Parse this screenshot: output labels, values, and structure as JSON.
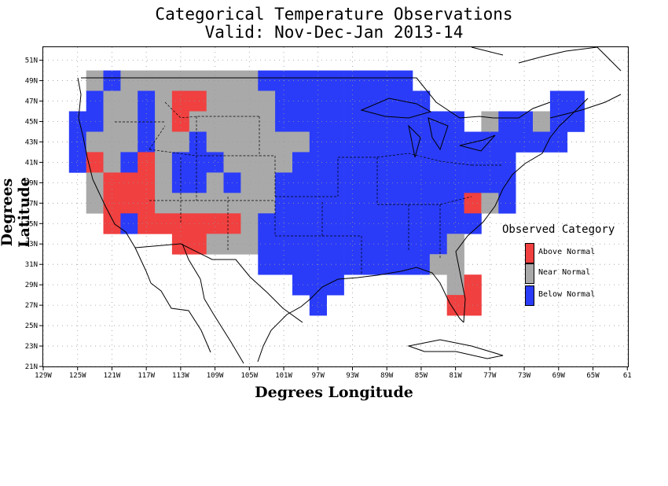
{
  "title_line1": "Categorical Temperature Observations",
  "title_line2": "Valid: Nov-Dec-Jan 2013-14",
  "xlabel": "Degrees Longitude",
  "ylabel": "Degrees Latitude",
  "x_ticks": [
    "129W",
    "125W",
    "121W",
    "117W",
    "113W",
    "109W",
    "105W",
    "101W",
    "97W",
    "93W",
    "89W",
    "85W",
    "81W",
    "77W",
    "73W",
    "69W",
    "65W",
    "61"
  ],
  "y_ticks": [
    "21N",
    "23N",
    "25N",
    "27N",
    "29N",
    "31N",
    "33N",
    "35N",
    "37N",
    "39N",
    "41N",
    "43N",
    "45N",
    "47N",
    "49N",
    "51N"
  ],
  "legend": {
    "title": "Observed Category",
    "items": [
      {
        "label": "Above Normal",
        "color": "#f04040"
      },
      {
        "label": "Near Normal",
        "color": "#a9a9a9"
      },
      {
        "label": "Below Normal",
        "color": "#2a3cf8"
      }
    ]
  },
  "colors": {
    "A": "#f04040",
    "N": "#a9a9a9",
    "B": "#2a3cf8"
  },
  "map_data": {
    "lon_range": [
      -129,
      -61
    ],
    "lat_range": [
      21,
      52
    ],
    "cell_size_deg": 2,
    "categories": {
      "A": "Above Normal",
      "N": "Near Normal",
      "B": "Below Normal"
    },
    "cells": [
      {
        "lat": 48,
        "lon": -124,
        "cat": "N"
      },
      {
        "lat": 48,
        "lon": -122,
        "cat": "B"
      },
      {
        "lat": 48,
        "lon": -120,
        "cat": "N"
      },
      {
        "lat": 48,
        "lon": -118,
        "cat": "N"
      },
      {
        "lat": 48,
        "lon": -116,
        "cat": "N"
      },
      {
        "lat": 48,
        "lon": -114,
        "cat": "N"
      },
      {
        "lat": 48,
        "lon": -112,
        "cat": "N"
      },
      {
        "lat": 48,
        "lon": -110,
        "cat": "N"
      },
      {
        "lat": 48,
        "lon": -108,
        "cat": "N"
      },
      {
        "lat": 48,
        "lon": -106,
        "cat": "N"
      },
      {
        "lat": 48,
        "lon": -104,
        "cat": "B"
      },
      {
        "lat": 48,
        "lon": -102,
        "cat": "B"
      },
      {
        "lat": 48,
        "lon": -100,
        "cat": "B"
      },
      {
        "lat": 48,
        "lon": -98,
        "cat": "B"
      },
      {
        "lat": 48,
        "lon": -96,
        "cat": "B"
      },
      {
        "lat": 48,
        "lon": -94,
        "cat": "B"
      },
      {
        "lat": 48,
        "lon": -92,
        "cat": "B"
      },
      {
        "lat": 48,
        "lon": -90,
        "cat": "B"
      },
      {
        "lat": 48,
        "lon": -88,
        "cat": "B"
      },
      {
        "lat": 46,
        "lon": -124,
        "cat": "B"
      },
      {
        "lat": 46,
        "lon": -122,
        "cat": "N"
      },
      {
        "lat": 46,
        "lon": -120,
        "cat": "N"
      },
      {
        "lat": 46,
        "lon": -118,
        "cat": "B"
      },
      {
        "lat": 46,
        "lon": -116,
        "cat": "N"
      },
      {
        "lat": 46,
        "lon": -114,
        "cat": "A"
      },
      {
        "lat": 46,
        "lon": -112,
        "cat": "A"
      },
      {
        "lat": 46,
        "lon": -110,
        "cat": "N"
      },
      {
        "lat": 46,
        "lon": -108,
        "cat": "N"
      },
      {
        "lat": 46,
        "lon": -106,
        "cat": "N"
      },
      {
        "lat": 46,
        "lon": -104,
        "cat": "N"
      },
      {
        "lat": 46,
        "lon": -102,
        "cat": "B"
      },
      {
        "lat": 46,
        "lon": -100,
        "cat": "B"
      },
      {
        "lat": 46,
        "lon": -98,
        "cat": "B"
      },
      {
        "lat": 46,
        "lon": -96,
        "cat": "B"
      },
      {
        "lat": 46,
        "lon": -94,
        "cat": "B"
      },
      {
        "lat": 46,
        "lon": -92,
        "cat": "B"
      },
      {
        "lat": 46,
        "lon": -90,
        "cat": "B"
      },
      {
        "lat": 46,
        "lon": -88,
        "cat": "B"
      },
      {
        "lat": 46,
        "lon": -86,
        "cat": "B"
      },
      {
        "lat": 46,
        "lon": -70,
        "cat": "B"
      },
      {
        "lat": 46,
        "lon": -68,
        "cat": "B"
      },
      {
        "lat": 44,
        "lon": -126,
        "cat": "B"
      },
      {
        "lat": 44,
        "lon": -124,
        "cat": "B"
      },
      {
        "lat": 44,
        "lon": -122,
        "cat": "N"
      },
      {
        "lat": 44,
        "lon": -120,
        "cat": "N"
      },
      {
        "lat": 44,
        "lon": -118,
        "cat": "B"
      },
      {
        "lat": 44,
        "lon": -116,
        "cat": "N"
      },
      {
        "lat": 44,
        "lon": -114,
        "cat": "A"
      },
      {
        "lat": 44,
        "lon": -112,
        "cat": "N"
      },
      {
        "lat": 44,
        "lon": -110,
        "cat": "N"
      },
      {
        "lat": 44,
        "lon": -108,
        "cat": "N"
      },
      {
        "lat": 44,
        "lon": -106,
        "cat": "N"
      },
      {
        "lat": 44,
        "lon": -104,
        "cat": "N"
      },
      {
        "lat": 44,
        "lon": -102,
        "cat": "B"
      },
      {
        "lat": 44,
        "lon": -100,
        "cat": "B"
      },
      {
        "lat": 44,
        "lon": -98,
        "cat": "B"
      },
      {
        "lat": 44,
        "lon": -96,
        "cat": "B"
      },
      {
        "lat": 44,
        "lon": -94,
        "cat": "B"
      },
      {
        "lat": 44,
        "lon": -92,
        "cat": "B"
      },
      {
        "lat": 44,
        "lon": -90,
        "cat": "B"
      },
      {
        "lat": 44,
        "lon": -88,
        "cat": "B"
      },
      {
        "lat": 44,
        "lon": -86,
        "cat": "B"
      },
      {
        "lat": 44,
        "lon": -84,
        "cat": "B"
      },
      {
        "lat": 44,
        "lon": -82,
        "cat": "B"
      },
      {
        "lat": 44,
        "lon": -78,
        "cat": "N"
      },
      {
        "lat": 44,
        "lon": -76,
        "cat": "B"
      },
      {
        "lat": 44,
        "lon": -74,
        "cat": "B"
      },
      {
        "lat": 44,
        "lon": -72,
        "cat": "N"
      },
      {
        "lat": 44,
        "lon": -70,
        "cat": "B"
      },
      {
        "lat": 44,
        "lon": -68,
        "cat": "B"
      },
      {
        "lat": 42,
        "lon": -126,
        "cat": "B"
      },
      {
        "lat": 42,
        "lon": -124,
        "cat": "N"
      },
      {
        "lat": 42,
        "lon": -122,
        "cat": "N"
      },
      {
        "lat": 42,
        "lon": -120,
        "cat": "N"
      },
      {
        "lat": 42,
        "lon": -118,
        "cat": "B"
      },
      {
        "lat": 42,
        "lon": -116,
        "cat": "N"
      },
      {
        "lat": 42,
        "lon": -114,
        "cat": "N"
      },
      {
        "lat": 42,
        "lon": -112,
        "cat": "B"
      },
      {
        "lat": 42,
        "lon": -110,
        "cat": "N"
      },
      {
        "lat": 42,
        "lon": -108,
        "cat": "N"
      },
      {
        "lat": 42,
        "lon": -106,
        "cat": "N"
      },
      {
        "lat": 42,
        "lon": -104,
        "cat": "N"
      },
      {
        "lat": 42,
        "lon": -102,
        "cat": "N"
      },
      {
        "lat": 42,
        "lon": -100,
        "cat": "N"
      },
      {
        "lat": 42,
        "lon": -98,
        "cat": "B"
      },
      {
        "lat": 42,
        "lon": -96,
        "cat": "B"
      },
      {
        "lat": 42,
        "lon": -94,
        "cat": "B"
      },
      {
        "lat": 42,
        "lon": -92,
        "cat": "B"
      },
      {
        "lat": 42,
        "lon": -90,
        "cat": "B"
      },
      {
        "lat": 42,
        "lon": -88,
        "cat": "B"
      },
      {
        "lat": 42,
        "lon": -86,
        "cat": "B"
      },
      {
        "lat": 42,
        "lon": -84,
        "cat": "B"
      },
      {
        "lat": 42,
        "lon": -82,
        "cat": "B"
      },
      {
        "lat": 42,
        "lon": -80,
        "cat": "B"
      },
      {
        "lat": 42,
        "lon": -78,
        "cat": "B"
      },
      {
        "lat": 42,
        "lon": -76,
        "cat": "B"
      },
      {
        "lat": 42,
        "lon": -74,
        "cat": "B"
      },
      {
        "lat": 42,
        "lon": -72,
        "cat": "B"
      },
      {
        "lat": 42,
        "lon": -70,
        "cat": "B"
      },
      {
        "lat": 40,
        "lon": -126,
        "cat": "B"
      },
      {
        "lat": 40,
        "lon": -124,
        "cat": "A"
      },
      {
        "lat": 40,
        "lon": -122,
        "cat": "N"
      },
      {
        "lat": 40,
        "lon": -120,
        "cat": "B"
      },
      {
        "lat": 40,
        "lon": -118,
        "cat": "A"
      },
      {
        "lat": 40,
        "lon": -116,
        "cat": "N"
      },
      {
        "lat": 40,
        "lon": -114,
        "cat": "B"
      },
      {
        "lat": 40,
        "lon": -112,
        "cat": "B"
      },
      {
        "lat": 40,
        "lon": -110,
        "cat": "B"
      },
      {
        "lat": 40,
        "lon": -108,
        "cat": "N"
      },
      {
        "lat": 40,
        "lon": -106,
        "cat": "N"
      },
      {
        "lat": 40,
        "lon": -104,
        "cat": "N"
      },
      {
        "lat": 40,
        "lon": -102,
        "cat": "N"
      },
      {
        "lat": 40,
        "lon": -100,
        "cat": "B"
      },
      {
        "lat": 40,
        "lon": -98,
        "cat": "B"
      },
      {
        "lat": 40,
        "lon": -96,
        "cat": "B"
      },
      {
        "lat": 40,
        "lon": -94,
        "cat": "B"
      },
      {
        "lat": 40,
        "lon": -92,
        "cat": "B"
      },
      {
        "lat": 40,
        "lon": -90,
        "cat": "B"
      },
      {
        "lat": 40,
        "lon": -88,
        "cat": "B"
      },
      {
        "lat": 40,
        "lon": -86,
        "cat": "B"
      },
      {
        "lat": 40,
        "lon": -84,
        "cat": "B"
      },
      {
        "lat": 40,
        "lon": -82,
        "cat": "B"
      },
      {
        "lat": 40,
        "lon": -80,
        "cat": "B"
      },
      {
        "lat": 40,
        "lon": -78,
        "cat": "B"
      },
      {
        "lat": 40,
        "lon": -76,
        "cat": "B"
      },
      {
        "lat": 38,
        "lon": -124,
        "cat": "N"
      },
      {
        "lat": 38,
        "lon": -122,
        "cat": "A"
      },
      {
        "lat": 38,
        "lon": -120,
        "cat": "A"
      },
      {
        "lat": 38,
        "lon": -118,
        "cat": "A"
      },
      {
        "lat": 38,
        "lon": -116,
        "cat": "N"
      },
      {
        "lat": 38,
        "lon": -114,
        "cat": "B"
      },
      {
        "lat": 38,
        "lon": -112,
        "cat": "B"
      },
      {
        "lat": 38,
        "lon": -110,
        "cat": "N"
      },
      {
        "lat": 38,
        "lon": -108,
        "cat": "B"
      },
      {
        "lat": 38,
        "lon": -106,
        "cat": "N"
      },
      {
        "lat": 38,
        "lon": -104,
        "cat": "N"
      },
      {
        "lat": 38,
        "lon": -102,
        "cat": "B"
      },
      {
        "lat": 38,
        "lon": -100,
        "cat": "B"
      },
      {
        "lat": 38,
        "lon": -98,
        "cat": "B"
      },
      {
        "lat": 38,
        "lon": -96,
        "cat": "B"
      },
      {
        "lat": 38,
        "lon": -94,
        "cat": "B"
      },
      {
        "lat": 38,
        "lon": -92,
        "cat": "B"
      },
      {
        "lat": 38,
        "lon": -90,
        "cat": "B"
      },
      {
        "lat": 38,
        "lon": -88,
        "cat": "B"
      },
      {
        "lat": 38,
        "lon": -86,
        "cat": "B"
      },
      {
        "lat": 38,
        "lon": -84,
        "cat": "B"
      },
      {
        "lat": 38,
        "lon": -82,
        "cat": "B"
      },
      {
        "lat": 38,
        "lon": -80,
        "cat": "B"
      },
      {
        "lat": 38,
        "lon": -78,
        "cat": "B"
      },
      {
        "lat": 38,
        "lon": -76,
        "cat": "B"
      },
      {
        "lat": 36,
        "lon": -124,
        "cat": "N"
      },
      {
        "lat": 36,
        "lon": -122,
        "cat": "A"
      },
      {
        "lat": 36,
        "lon": -120,
        "cat": "A"
      },
      {
        "lat": 36,
        "lon": -118,
        "cat": "A"
      },
      {
        "lat": 36,
        "lon": -116,
        "cat": "N"
      },
      {
        "lat": 36,
        "lon": -114,
        "cat": "N"
      },
      {
        "lat": 36,
        "lon": -112,
        "cat": "N"
      },
      {
        "lat": 36,
        "lon": -110,
        "cat": "N"
      },
      {
        "lat": 36,
        "lon": -108,
        "cat": "N"
      },
      {
        "lat": 36,
        "lon": -106,
        "cat": "N"
      },
      {
        "lat": 36,
        "lon": -104,
        "cat": "N"
      },
      {
        "lat": 36,
        "lon": -102,
        "cat": "B"
      },
      {
        "lat": 36,
        "lon": -100,
        "cat": "B"
      },
      {
        "lat": 36,
        "lon": -98,
        "cat": "B"
      },
      {
        "lat": 36,
        "lon": -96,
        "cat": "B"
      },
      {
        "lat": 36,
        "lon": -94,
        "cat": "B"
      },
      {
        "lat": 36,
        "lon": -92,
        "cat": "B"
      },
      {
        "lat": 36,
        "lon": -90,
        "cat": "B"
      },
      {
        "lat": 36,
        "lon": -88,
        "cat": "B"
      },
      {
        "lat": 36,
        "lon": -86,
        "cat": "B"
      },
      {
        "lat": 36,
        "lon": -84,
        "cat": "B"
      },
      {
        "lat": 36,
        "lon": -82,
        "cat": "B"
      },
      {
        "lat": 36,
        "lon": -80,
        "cat": "A"
      },
      {
        "lat": 36,
        "lon": -78,
        "cat": "N"
      },
      {
        "lat": 36,
        "lon": -76,
        "cat": "B"
      },
      {
        "lat": 34,
        "lon": -122,
        "cat": "A"
      },
      {
        "lat": 34,
        "lon": -120,
        "cat": "B"
      },
      {
        "lat": 34,
        "lon": -118,
        "cat": "A"
      },
      {
        "lat": 34,
        "lon": -116,
        "cat": "A"
      },
      {
        "lat": 34,
        "lon": -114,
        "cat": "A"
      },
      {
        "lat": 34,
        "lon": -112,
        "cat": "A"
      },
      {
        "lat": 34,
        "lon": -110,
        "cat": "A"
      },
      {
        "lat": 34,
        "lon": -108,
        "cat": "A"
      },
      {
        "lat": 34,
        "lon": -106,
        "cat": "N"
      },
      {
        "lat": 34,
        "lon": -104,
        "cat": "B"
      },
      {
        "lat": 34,
        "lon": -102,
        "cat": "B"
      },
      {
        "lat": 34,
        "lon": -100,
        "cat": "B"
      },
      {
        "lat": 34,
        "lon": -98,
        "cat": "B"
      },
      {
        "lat": 34,
        "lon": -96,
        "cat": "B"
      },
      {
        "lat": 34,
        "lon": -94,
        "cat": "B"
      },
      {
        "lat": 34,
        "lon": -92,
        "cat": "B"
      },
      {
        "lat": 34,
        "lon": -90,
        "cat": "B"
      },
      {
        "lat": 34,
        "lon": -88,
        "cat": "B"
      },
      {
        "lat": 34,
        "lon": -86,
        "cat": "B"
      },
      {
        "lat": 34,
        "lon": -84,
        "cat": "B"
      },
      {
        "lat": 34,
        "lon": -82,
        "cat": "B"
      },
      {
        "lat": 34,
        "lon": -80,
        "cat": "B"
      },
      {
        "lat": 32,
        "lon": -114,
        "cat": "A"
      },
      {
        "lat": 32,
        "lon": -112,
        "cat": "A"
      },
      {
        "lat": 32,
        "lon": -110,
        "cat": "N"
      },
      {
        "lat": 32,
        "lon": -108,
        "cat": "N"
      },
      {
        "lat": 32,
        "lon": -106,
        "cat": "N"
      },
      {
        "lat": 32,
        "lon": -104,
        "cat": "B"
      },
      {
        "lat": 32,
        "lon": -102,
        "cat": "B"
      },
      {
        "lat": 32,
        "lon": -100,
        "cat": "B"
      },
      {
        "lat": 32,
        "lon": -98,
        "cat": "B"
      },
      {
        "lat": 32,
        "lon": -96,
        "cat": "B"
      },
      {
        "lat": 32,
        "lon": -94,
        "cat": "B"
      },
      {
        "lat": 32,
        "lon": -92,
        "cat": "B"
      },
      {
        "lat": 32,
        "lon": -90,
        "cat": "B"
      },
      {
        "lat": 32,
        "lon": -88,
        "cat": "B"
      },
      {
        "lat": 32,
        "lon": -86,
        "cat": "B"
      },
      {
        "lat": 32,
        "lon": -84,
        "cat": "B"
      },
      {
        "lat": 32,
        "lon": -82,
        "cat": "N"
      },
      {
        "lat": 30,
        "lon": -104,
        "cat": "B"
      },
      {
        "lat": 30,
        "lon": -102,
        "cat": "B"
      },
      {
        "lat": 30,
        "lon": -100,
        "cat": "B"
      },
      {
        "lat": 30,
        "lon": -98,
        "cat": "B"
      },
      {
        "lat": 30,
        "lon": -96,
        "cat": "B"
      },
      {
        "lat": 30,
        "lon": -94,
        "cat": "B"
      },
      {
        "lat": 30,
        "lon": -92,
        "cat": "B"
      },
      {
        "lat": 30,
        "lon": -90,
        "cat": "B"
      },
      {
        "lat": 30,
        "lon": -88,
        "cat": "B"
      },
      {
        "lat": 30,
        "lon": -86,
        "cat": "B"
      },
      {
        "lat": 30,
        "lon": -84,
        "cat": "N"
      },
      {
        "lat": 30,
        "lon": -82,
        "cat": "N"
      },
      {
        "lat": 28,
        "lon": -100,
        "cat": "B"
      },
      {
        "lat": 28,
        "lon": -98,
        "cat": "B"
      },
      {
        "lat": 28,
        "lon": -96,
        "cat": "B"
      },
      {
        "lat": 28,
        "lon": -82,
        "cat": "N"
      },
      {
        "lat": 28,
        "lon": -80,
        "cat": "A"
      },
      {
        "lat": 26,
        "lon": -98,
        "cat": "B"
      },
      {
        "lat": 26,
        "lon": -82,
        "cat": "A"
      },
      {
        "lat": 26,
        "lon": -80,
        "cat": "A"
      }
    ]
  }
}
